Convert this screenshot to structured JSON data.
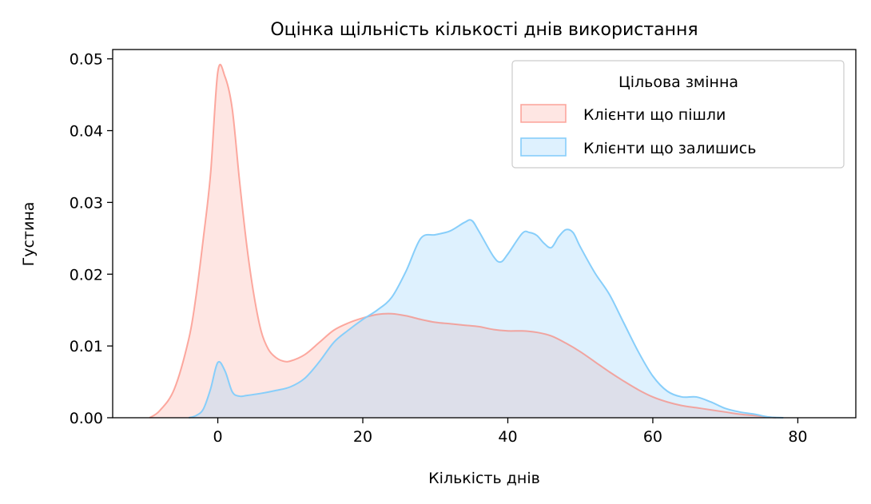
{
  "chart_data": {
    "type": "area",
    "title": "Оцінка щільність кількості днів використання",
    "xlabel": "Кількість днів",
    "ylabel": "Густина",
    "xlim": [
      -14.5,
      88
    ],
    "ylim": [
      0,
      0.0513
    ],
    "xticks": [
      0,
      20,
      40,
      60,
      80
    ],
    "yticks": [
      0.0,
      0.01,
      0.02,
      0.03,
      0.04,
      0.05
    ],
    "xtick_labels": [
      "0",
      "20",
      "40",
      "60",
      "80"
    ],
    "ytick_labels": [
      "0.00",
      "0.01",
      "0.02",
      "0.03",
      "0.04",
      "0.05"
    ],
    "grid": false,
    "legend": {
      "title": "Цільова змінна",
      "placement": "top-right"
    },
    "series": [
      {
        "name": "Клієнти що пішли",
        "color": "#fa8072",
        "points": [
          [
            -9.4,
            0.0
          ],
          [
            -8,
            0.001
          ],
          [
            -6,
            0.004
          ],
          [
            -4,
            0.011
          ],
          [
            -3,
            0.017
          ],
          [
            -2,
            0.025
          ],
          [
            -1,
            0.034
          ],
          [
            0,
            0.0482
          ],
          [
            1,
            0.0475
          ],
          [
            2,
            0.043
          ],
          [
            3,
            0.033
          ],
          [
            4,
            0.024
          ],
          [
            5,
            0.017
          ],
          [
            6,
            0.012
          ],
          [
            7,
            0.0095
          ],
          [
            8,
            0.0084
          ],
          [
            9,
            0.0079
          ],
          [
            10,
            0.0079
          ],
          [
            12,
            0.0088
          ],
          [
            14,
            0.0105
          ],
          [
            16,
            0.0122
          ],
          [
            18,
            0.0132
          ],
          [
            20,
            0.0139
          ],
          [
            22,
            0.0144
          ],
          [
            24,
            0.0145
          ],
          [
            26,
            0.0142
          ],
          [
            28,
            0.0137
          ],
          [
            30,
            0.0133
          ],
          [
            32,
            0.0131
          ],
          [
            34,
            0.0129
          ],
          [
            36,
            0.0127
          ],
          [
            38,
            0.0123
          ],
          [
            40,
            0.0121
          ],
          [
            42,
            0.0121
          ],
          [
            44,
            0.0119
          ],
          [
            46,
            0.0114
          ],
          [
            48,
            0.0104
          ],
          [
            50,
            0.0092
          ],
          [
            52,
            0.0078
          ],
          [
            54,
            0.0064
          ],
          [
            56,
            0.0051
          ],
          [
            58,
            0.0039
          ],
          [
            60,
            0.0029
          ],
          [
            62,
            0.0022
          ],
          [
            64,
            0.0017
          ],
          [
            66,
            0.0014
          ],
          [
            68,
            0.0011
          ],
          [
            70,
            0.0008
          ],
          [
            72,
            0.0005
          ],
          [
            74,
            0.0003
          ],
          [
            76,
            0.0001
          ],
          [
            77,
            0.0
          ]
        ]
      },
      {
        "name": "Клієнти що залишись",
        "color": "#87cefa",
        "points": [
          [
            -4,
            0.0
          ],
          [
            -3,
            0.0003
          ],
          [
            -2,
            0.0012
          ],
          [
            -1,
            0.004
          ],
          [
            0,
            0.0077
          ],
          [
            1,
            0.0065
          ],
          [
            2,
            0.0036
          ],
          [
            3,
            0.003
          ],
          [
            4,
            0.0031
          ],
          [
            6,
            0.0034
          ],
          [
            8,
            0.0038
          ],
          [
            10,
            0.0043
          ],
          [
            12,
            0.0055
          ],
          [
            14,
            0.0078
          ],
          [
            16,
            0.0105
          ],
          [
            18,
            0.0122
          ],
          [
            20,
            0.0137
          ],
          [
            22,
            0.015
          ],
          [
            24,
            0.0168
          ],
          [
            26,
            0.0205
          ],
          [
            28,
            0.025
          ],
          [
            30,
            0.0255
          ],
          [
            32,
            0.026
          ],
          [
            34,
            0.0272
          ],
          [
            35,
            0.0275
          ],
          [
            36,
            0.026
          ],
          [
            38,
            0.0225
          ],
          [
            39,
            0.0217
          ],
          [
            40,
            0.0228
          ],
          [
            42,
            0.0257
          ],
          [
            43,
            0.0258
          ],
          [
            44,
            0.0254
          ],
          [
            45,
            0.0243
          ],
          [
            46,
            0.0237
          ],
          [
            47,
            0.0252
          ],
          [
            48,
            0.0262
          ],
          [
            49,
            0.0258
          ],
          [
            50,
            0.0238
          ],
          [
            52,
            0.0202
          ],
          [
            54,
            0.0172
          ],
          [
            56,
            0.0132
          ],
          [
            58,
            0.0092
          ],
          [
            60,
            0.0058
          ],
          [
            62,
            0.0037
          ],
          [
            64,
            0.0029
          ],
          [
            66,
            0.0029
          ],
          [
            68,
            0.0022
          ],
          [
            70,
            0.0013
          ],
          [
            72,
            0.0008
          ],
          [
            74,
            0.0005
          ],
          [
            76,
            0.0001
          ],
          [
            78,
            0.0
          ]
        ]
      }
    ]
  }
}
